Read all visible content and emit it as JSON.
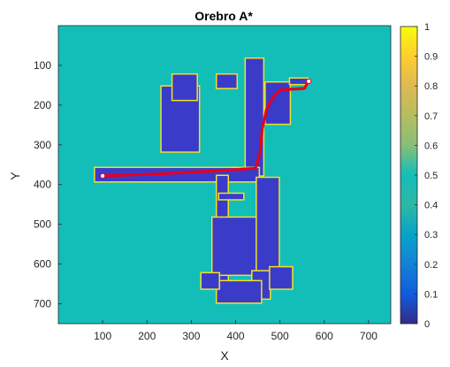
{
  "chart_data": {
    "type": "heatmap",
    "title": "Orebro A*",
    "xlabel": "X",
    "ylabel": "Y",
    "xlim": [
      0,
      750
    ],
    "ylim": [
      750,
      0
    ],
    "y_reversed": true,
    "xticks": [
      100,
      200,
      300,
      400,
      500,
      600,
      700
    ],
    "yticks": [
      100,
      200,
      300,
      400,
      500,
      600,
      700
    ],
    "background_value": 0.5,
    "colormap": "parula",
    "colorbar": {
      "range": [
        0,
        1
      ],
      "ticks": [
        "0",
        "0.1",
        "0.2",
        "0.3",
        "0.4",
        "0.5",
        "0.6",
        "0.7",
        "0.8",
        "0.9",
        "1"
      ]
    },
    "colors": {
      "background_cell": "#13BEB8",
      "free_space": "#3A3CC9",
      "walls": "#F4E027",
      "path": "#E5001F",
      "start_goal": "#FFFFFF"
    },
    "free_regions": [
      {
        "x": [
          420,
          465
        ],
        "y": [
          80,
          380
        ]
      },
      {
        "x": [
          230,
          320
        ],
        "y": [
          150,
          320
        ]
      },
      {
        "x": [
          255,
          315
        ],
        "y": [
          120,
          190
        ]
      },
      {
        "x": [
          465,
          525
        ],
        "y": [
          140,
          250
        ]
      },
      {
        "x": [
          520,
          565
        ],
        "y": [
          130,
          150
        ]
      },
      {
        "x": [
          80,
          455
        ],
        "y": [
          355,
          395
        ]
      },
      {
        "x": [
          355,
          385
        ],
        "y": [
          375,
          690
        ]
      },
      {
        "x": [
          345,
          450
        ],
        "y": [
          480,
          630
        ]
      },
      {
        "x": [
          355,
          405
        ],
        "y": [
          120,
          160
        ]
      },
      {
        "x": [
          445,
          500
        ],
        "y": [
          380,
          660
        ]
      },
      {
        "x": [
          435,
          480
        ],
        "y": [
          615,
          690
        ]
      },
      {
        "x": [
          475,
          530
        ],
        "y": [
          605,
          665
        ]
      },
      {
        "x": [
          355,
          460
        ],
        "y": [
          640,
          700
        ]
      },
      {
        "x": [
          320,
          365
        ],
        "y": [
          620,
          665
        ]
      },
      {
        "x": [
          360,
          420
        ],
        "y": [
          420,
          440
        ]
      }
    ],
    "path": {
      "x": [
        100,
        210,
        330,
        445,
        455,
        460,
        470,
        485,
        500,
        525,
        555,
        565
      ],
      "y": [
        378,
        374,
        367,
        359,
        320,
        260,
        210,
        180,
        162,
        160,
        158,
        140
      ]
    },
    "start": {
      "x": 100,
      "y": 378
    },
    "goal": {
      "x": 565,
      "y": 140
    }
  }
}
